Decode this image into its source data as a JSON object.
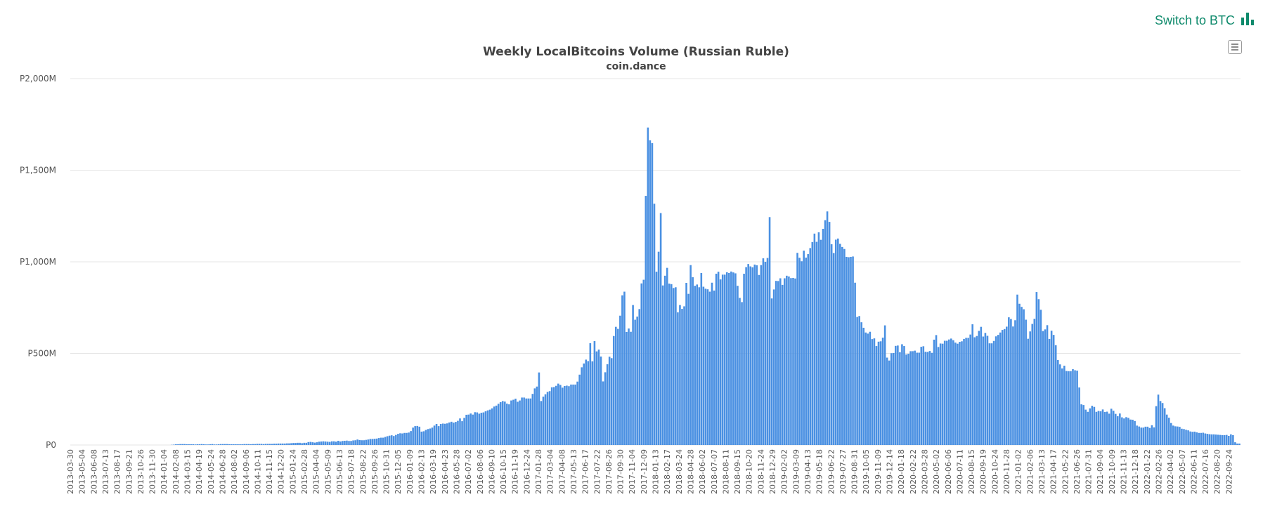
{
  "switch_link": {
    "label": "Switch to BTC",
    "icon": "bar-chart-icon",
    "color": "#0f8a6c"
  },
  "menu": {
    "icon": "hamburger-menu-icon"
  },
  "colors": {
    "bar": "#4a90e2",
    "bar_edge": "#3a7ccc",
    "grid": "#e6e6e6",
    "text": "#444444",
    "axis_text": "#555555"
  },
  "chart_data": {
    "type": "bar",
    "title": "Weekly LocalBitcoins Volume (Russian Ruble)",
    "subtitle": "coin.dance",
    "xlabel": "",
    "ylabel": "",
    "ylim": [
      0,
      2000
    ],
    "yticks": [
      0,
      500,
      1000,
      1500,
      2000
    ],
    "ytick_labels": [
      "P0",
      "P500M",
      "P1,000M",
      "P1,500M",
      "P2,000M"
    ],
    "grid": true,
    "legend": "none",
    "value_unit": "million RUB per week",
    "xtick_labels": [
      "2013-03-30",
      "2013-05-04",
      "2013-06-08",
      "2013-07-13",
      "2013-08-17",
      "2013-09-21",
      "2013-10-26",
      "2013-11-30",
      "2014-01-04",
      "2014-02-08",
      "2014-03-15",
      "2014-04-19",
      "2014-05-24",
      "2014-06-28",
      "2014-08-02",
      "2014-09-06",
      "2014-10-11",
      "2014-11-15",
      "2014-12-20",
      "2015-01-24",
      "2015-02-28",
      "2015-04-04",
      "2015-05-09",
      "2015-06-13",
      "2015-07-18",
      "2015-08-22",
      "2015-09-26",
      "2015-10-31",
      "2015-12-05",
      "2016-01-09",
      "2016-02-13",
      "2016-03-19",
      "2016-04-23",
      "2016-05-28",
      "2016-07-02",
      "2016-08-06",
      "2016-09-10",
      "2016-10-15",
      "2016-11-19",
      "2016-12-24",
      "2017-01-28",
      "2017-03-04",
      "2017-04-08",
      "2017-05-13",
      "2017-06-17",
      "2017-07-22",
      "2017-08-26",
      "2017-09-30",
      "2017-11-04",
      "2017-12-09",
      "2018-01-13",
      "2018-02-17",
      "2018-03-24",
      "2018-04-28",
      "2018-06-02",
      "2018-07-07",
      "2018-08-11",
      "2018-09-15",
      "2018-10-20",
      "2018-11-24",
      "2018-12-29",
      "2019-02-02",
      "2019-03-09",
      "2019-04-13",
      "2019-05-18",
      "2019-06-22",
      "2019-07-27",
      "2019-08-31",
      "2019-10-05",
      "2019-11-09",
      "2019-12-14",
      "2020-01-18",
      "2020-02-22",
      "2020-03-28",
      "2020-05-02",
      "2020-06-06",
      "2020-07-11",
      "2020-08-15",
      "2020-09-19",
      "2020-10-24",
      "2020-11-28",
      "2021-01-02",
      "2021-02-06",
      "2021-03-13",
      "2021-04-17",
      "2021-05-22",
      "2021-06-26",
      "2021-07-31",
      "2021-09-04",
      "2021-10-09",
      "2021-11-13",
      "2021-12-18",
      "2022-01-22",
      "2022-02-26",
      "2022-04-02",
      "2022-05-07",
      "2022-06-11",
      "2022-07-16",
      "2022-08-20",
      "2022-09-24"
    ],
    "values": [
      0,
      0,
      0,
      0,
      0,
      0,
      0,
      0,
      0,
      0,
      0,
      0,
      0,
      0,
      0,
      0,
      0,
      0,
      0,
      0,
      0,
      0,
      0,
      0,
      0,
      0,
      0,
      0,
      0,
      0,
      0,
      0,
      0,
      0,
      0,
      0,
      0,
      0,
      0,
      0,
      0,
      0,
      0,
      0,
      0,
      0,
      0,
      1,
      2,
      4,
      4,
      5,
      5,
      5,
      4,
      4,
      4,
      4,
      3,
      4,
      4,
      5,
      4,
      3,
      3,
      4,
      5,
      3,
      3,
      4,
      5,
      5,
      5,
      5,
      4,
      4,
      4,
      4,
      4,
      4,
      4,
      5,
      5,
      5,
      4,
      5,
      5,
      6,
      6,
      6,
      5,
      6,
      6,
      6,
      6,
      7,
      7,
      8,
      8,
      8,
      8,
      9,
      9,
      10,
      11,
      11,
      12,
      12,
      10,
      12,
      12,
      16,
      17,
      15,
      13,
      15,
      18,
      19,
      20,
      19,
      18,
      17,
      20,
      20,
      18,
      23,
      19,
      22,
      23,
      24,
      22,
      22,
      25,
      26,
      30,
      27,
      26,
      26,
      28,
      30,
      33,
      33,
      34,
      35,
      38,
      40,
      40,
      44,
      48,
      51,
      53,
      49,
      55,
      61,
      64,
      63,
      66,
      66,
      68,
      76,
      95,
      103,
      104,
      100,
      73,
      75,
      82,
      87,
      90,
      95,
      106,
      115,
      103,
      115,
      117,
      116,
      118,
      123,
      127,
      122,
      126,
      132,
      145,
      130,
      148,
      165,
      166,
      172,
      166,
      179,
      178,
      171,
      176,
      178,
      184,
      189,
      193,
      200,
      210,
      215,
      225,
      234,
      240,
      237,
      226,
      222,
      243,
      247,
      253,
      236,
      243,
      259,
      259,
      254,
      254,
      254,
      279,
      309,
      319,
      396,
      240,
      264,
      277,
      290,
      294,
      315,
      316,
      323,
      335,
      328,
      313,
      322,
      324,
      321,
      330,
      330,
      330,
      346,
      384,
      424,
      445,
      466,
      458,
      556,
      457,
      567,
      511,
      521,
      483,
      347,
      397,
      441,
      482,
      474,
      595,
      645,
      634,
      706,
      817,
      837,
      617,
      636,
      618,
      764,
      684,
      701,
      742,
      882,
      902,
      1360,
      1733,
      1663,
      1648,
      1317,
      946,
      1055,
      1266,
      871,
      924,
      967,
      881,
      878,
      857,
      861,
      724,
      764,
      743,
      757,
      885,
      825,
      982,
      916,
      869,
      876,
      861,
      939,
      864,
      853,
      850,
      837,
      886,
      843,
      935,
      946,
      904,
      930,
      930,
      943,
      939,
      947,
      942,
      937,
      869,
      803,
      780,
      935,
      971,
      988,
      975,
      970,
      985,
      981,
      928,
      982,
      1019,
      1000,
      1021,
      1244,
      800,
      849,
      896,
      895,
      910,
      874,
      910,
      924,
      920,
      911,
      912,
      909,
      1049,
      1022,
      1003,
      1061,
      1023,
      1042,
      1075,
      1108,
      1154,
      1109,
      1161,
      1120,
      1180,
      1227,
      1275,
      1218,
      1096,
      1048,
      1121,
      1127,
      1098,
      1081,
      1070,
      1027,
      1025,
      1027,
      1029,
      886,
      699,
      704,
      670,
      640,
      614,
      608,
      618,
      578,
      582,
      540,
      564,
      566,
      586,
      653,
      477,
      461,
      501,
      502,
      541,
      543,
      507,
      550,
      540,
      494,
      498,
      512,
      512,
      515,
      504,
      504,
      536,
      539,
      509,
      508,
      513,
      503,
      575,
      600,
      535,
      554,
      553,
      569,
      569,
      576,
      581,
      572,
      559,
      553,
      563,
      566,
      579,
      585,
      585,
      603,
      659,
      588,
      595,
      623,
      645,
      592,
      612,
      596,
      555,
      555,
      568,
      593,
      601,
      614,
      628,
      633,
      646,
      697,
      688,
      647,
      681,
      821,
      771,
      754,
      741,
      684,
      580,
      620,
      661,
      689,
      835,
      796,
      738,
      622,
      631,
      654,
      579,
      624,
      601,
      545,
      464,
      440,
      418,
      433,
      404,
      403,
      403,
      414,
      408,
      406,
      314,
      222,
      218,
      193,
      181,
      200,
      214,
      208,
      181,
      186,
      184,
      194,
      180,
      182,
      171,
      198,
      187,
      170,
      157,
      172,
      151,
      145,
      152,
      148,
      139,
      138,
      131,
      106,
      101,
      95,
      95,
      100,
      100,
      93,
      108,
      96,
      212,
      275,
      240,
      229,
      201,
      166,
      149,
      120,
      106,
      102,
      101,
      99,
      89,
      87,
      83,
      80,
      74,
      72,
      73,
      69,
      66,
      66,
      67,
      63,
      61,
      59,
      58,
      58,
      57,
      56,
      55,
      54,
      54,
      55,
      50,
      58,
      54,
      15,
      8,
      8
    ]
  }
}
